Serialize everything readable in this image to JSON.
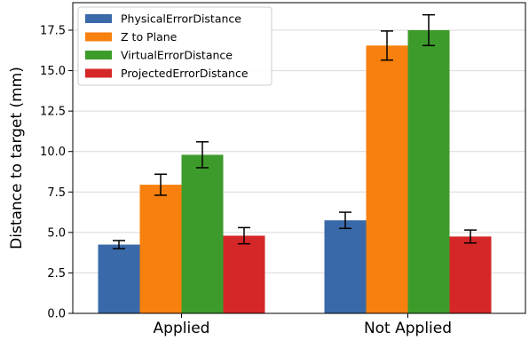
{
  "chart_data": {
    "type": "bar",
    "categories": [
      "Applied",
      "Not Applied"
    ],
    "ylabel": "Distance to target (mm)",
    "xlabel": "",
    "ylim": [
      0,
      19.2
    ],
    "yticks": [
      0.0,
      2.5,
      5.0,
      7.5,
      10.0,
      12.5,
      15.0,
      17.5
    ],
    "ytick_labels": [
      "0.0",
      "2.5",
      "5.0",
      "7.5",
      "10.0",
      "12.5",
      "15.0",
      "17.5"
    ],
    "grid": "horizontal",
    "legend_position": "top-left",
    "series": [
      {
        "name": "PhysicalErrorDistance",
        "color": "#3a69a9",
        "values": [
          4.25,
          5.75
        ],
        "errors": [
          0.25,
          0.5
        ]
      },
      {
        "name": "Z to Plane",
        "color": "#f7800e",
        "values": [
          7.95,
          16.55
        ],
        "errors": [
          0.65,
          0.9
        ]
      },
      {
        "name": "VirtualErrorDistance",
        "color": "#3d9b2b",
        "values": [
          9.8,
          17.5
        ],
        "errors": [
          0.8,
          0.95
        ]
      },
      {
        "name": "ProjectedErrorDistance",
        "color": "#d62728",
        "values": [
          4.8,
          4.75
        ],
        "errors": [
          0.5,
          0.4
        ]
      }
    ]
  }
}
